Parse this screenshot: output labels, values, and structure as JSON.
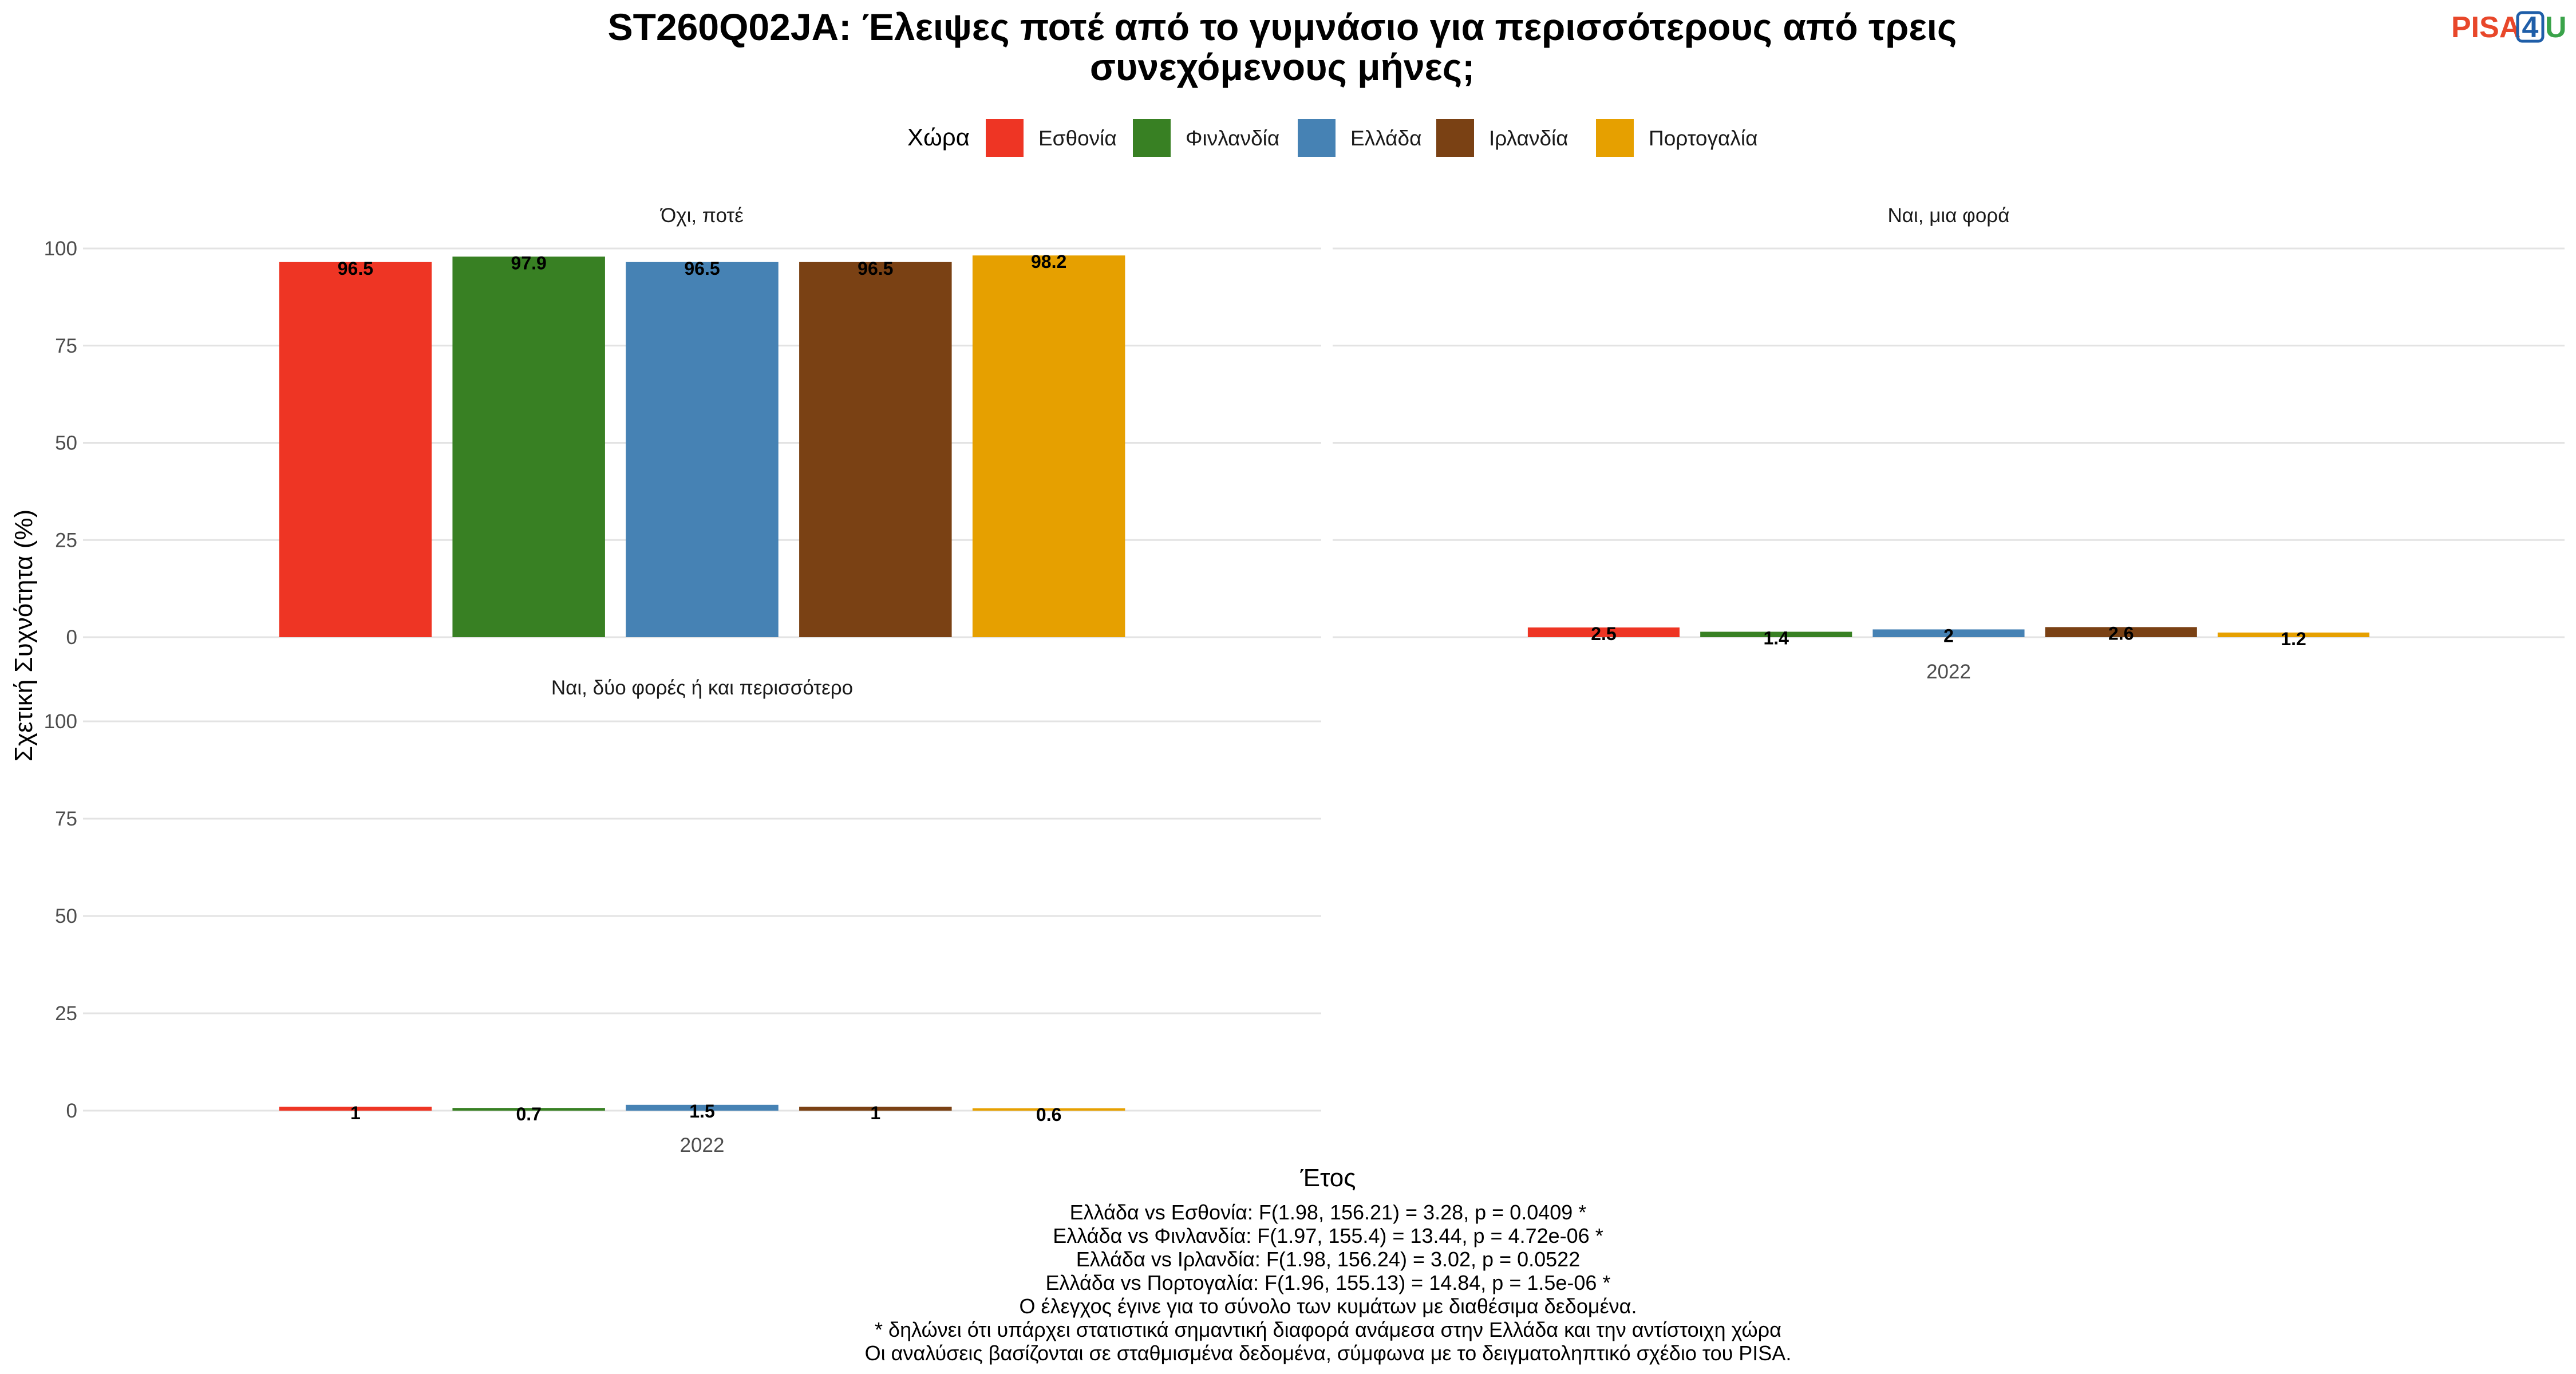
{
  "title_lines": [
    "ST260Q02JA: Έλειψες ποτέ από το γυμνάσιο για περισσότερους από τρεις",
    "συνεχόμενους μήνες;"
  ],
  "logo": {
    "part1": "PISA",
    "part2": "4",
    "part3": "U",
    "colors": [
      "#E8472A",
      "#1F5EA8",
      "#3AA34A"
    ]
  },
  "legend": {
    "title": "Χώρα",
    "position": "top"
  },
  "chart_data": {
    "type": "bar",
    "facet_by": "response",
    "x": [
      "2022"
    ],
    "xlabel": "Έτος",
    "ylabel": "Σχετική Συχνότητα (%)",
    "ylim": [
      0,
      100
    ],
    "yticks": [
      0,
      25,
      50,
      75,
      100
    ],
    "grid": true,
    "series": [
      {
        "name": "Εσθονία",
        "color": "#EE3524"
      },
      {
        "name": "Φινλανδία",
        "color": "#388023"
      },
      {
        "name": "Ελλάδα",
        "color": "#4682B4"
      },
      {
        "name": "Ιρλανδία",
        "color": "#7A4114"
      },
      {
        "name": "Πορτογαλία",
        "color": "#E6A000"
      }
    ],
    "panels": [
      {
        "label": "Όχι, ποτέ",
        "values": [
          96.5,
          97.9,
          96.5,
          96.5,
          98.2
        ],
        "labels": [
          "96.5",
          "97.9",
          "96.5",
          "96.5",
          "98.2"
        ]
      },
      {
        "label": "Ναι, μια φορά",
        "values": [
          2.5,
          1.4,
          2,
          2.6,
          1.2
        ],
        "labels": [
          "2.5",
          "1.4",
          "2",
          "2.6",
          "1.2"
        ]
      },
      {
        "label": "Ναι, δύο φορές ή και περισσότερο",
        "values": [
          1,
          0.7,
          1.5,
          1,
          0.6
        ],
        "labels": [
          "1",
          "0.7",
          "1.5",
          "1",
          "0.6"
        ]
      }
    ]
  },
  "notes": [
    "Ελλάδα vs Εσθονία: F(1.98, 156.21) = 3.28, p = 0.0409 *",
    "Ελλάδα vs Φινλανδία: F(1.97, 155.4) = 13.44, p = 4.72e-06 *",
    "Ελλάδα vs Ιρλανδία: F(1.98, 156.24) = 3.02, p = 0.0522",
    "Ελλάδα vs Πορτογαλία: F(1.96, 155.13) = 14.84, p = 1.5e-06 *",
    "Ο έλεγχος έγινε για το σύνολο των κυμάτων με διαθέσιμα δεδομένα.",
    "* δηλώνει ότι υπάρχει στατιστικά σημαντική διαφορά ανάμεσα στην Ελλάδα και την αντίστοιχη χώρα",
    "Οι αναλύσεις βασίζονται σε σταθμισμένα δεδομένα, σύμφωνα με το δειγματοληπτικό σχέδιο του PISA."
  ]
}
